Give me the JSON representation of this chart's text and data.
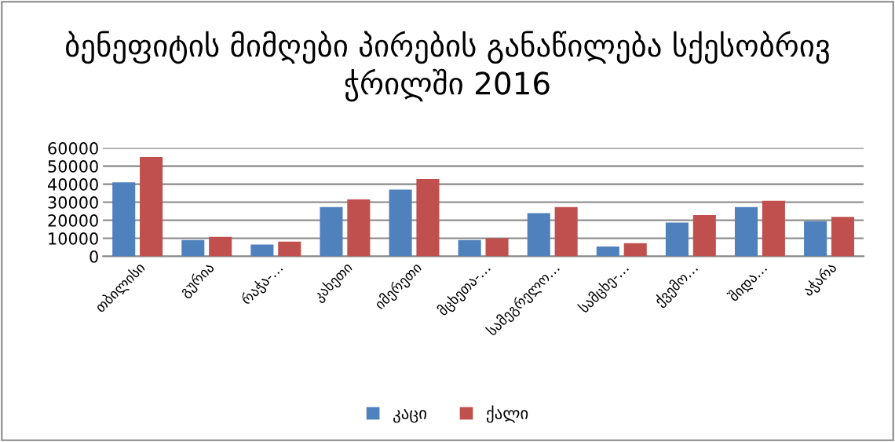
{
  "chart_data": {
    "type": "bar",
    "title": "ბენეფიტის მიმღები პირების განაწილება სქესობრივ ჭრილში 2016",
    "categories": [
      "თბილისი",
      "გურია",
      "რაჭა-…",
      "კახეთი",
      "იმერეთი",
      "მცხეთა-…",
      "სამეგრელო…",
      "სამცხე-…",
      "ქვემო…",
      "შიდა…",
      "აჭარა"
    ],
    "series": [
      {
        "name": "კაცი",
        "color": "#4f81bd",
        "values": [
          41000,
          9000,
          6500,
          27300,
          37000,
          9000,
          23900,
          5500,
          18700,
          27300,
          19500
        ]
      },
      {
        "name": "ქალი",
        "color": "#c0504d",
        "values": [
          55000,
          10800,
          8200,
          31600,
          42900,
          10000,
          27300,
          7300,
          22900,
          30800,
          21900
        ]
      }
    ],
    "ylim": [
      0,
      60000
    ],
    "yticks": [
      0,
      10000,
      20000,
      30000,
      40000,
      50000,
      60000
    ],
    "grid": "y",
    "legend": "bottom"
  }
}
